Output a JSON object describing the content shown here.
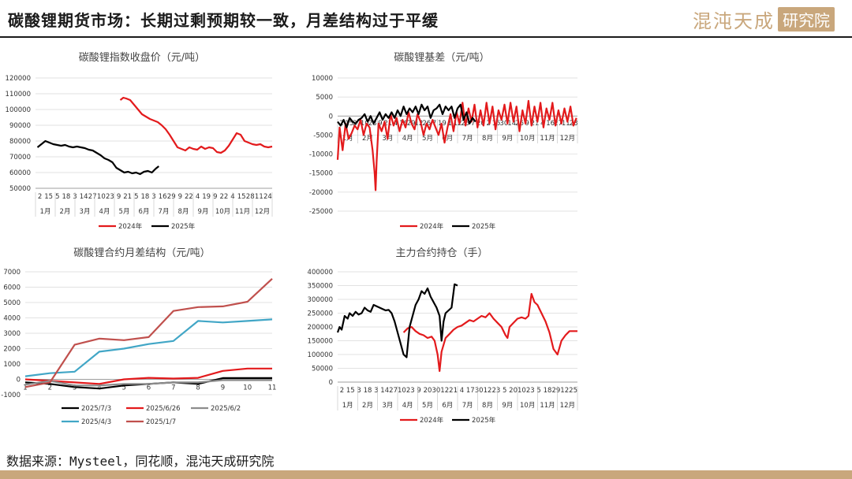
{
  "header": {
    "title": "碳酸锂期货市场：长期过剩预期较一致，月差结构过于平缓",
    "logo_text": "混沌天成",
    "logo_box": "研究院"
  },
  "footer": {
    "source": "数据来源：Mysteel，同花顺，混沌天成研究院"
  },
  "colors": {
    "s2024": "#e31a1c",
    "s2025": "#000000",
    "gold": "#c9a77c"
  },
  "chart_data": [
    {
      "id": "index_close",
      "type": "line",
      "title": "碳酸锂指数收盘价（元/吨）",
      "ylim": [
        50000,
        120000
      ],
      "yticks": [
        50000,
        60000,
        70000,
        80000,
        90000,
        100000,
        110000,
        120000
      ],
      "x_day_labels": [
        "2",
        "15",
        "5",
        "18",
        "3",
        "14",
        "27",
        "10",
        "23",
        "9",
        "21",
        "5",
        "18",
        "3",
        "16",
        "29",
        "9",
        "22",
        "4",
        "19",
        "9",
        "22",
        "4",
        "15",
        "28",
        "11",
        "24"
      ],
      "x_month_labels": [
        "1月",
        "2月",
        "3月",
        "4月",
        "5月",
        "6月",
        "7月",
        "8月",
        "9月",
        "10月",
        "11月",
        "12月"
      ],
      "legend": [
        "2024年",
        "2025年"
      ],
      "series": [
        {
          "name": "2024年",
          "color": "#e31a1c",
          "x": [
            4.3,
            4.45,
            4.6,
            4.8,
            5.0,
            5.2,
            5.4,
            5.6,
            5.8,
            6.0,
            6.2,
            6.4,
            6.6,
            6.8,
            7.0,
            7.2,
            7.4,
            7.6,
            7.8,
            8.0,
            8.2,
            8.4,
            8.6,
            8.8,
            9.0,
            9.2,
            9.4,
            9.6,
            9.8,
            10.0,
            10.2,
            10.4,
            10.6,
            10.8,
            11.0,
            11.2,
            11.4,
            11.6,
            11.8,
            12.0
          ],
          "values": [
            106000,
            107500,
            107000,
            106000,
            103000,
            100000,
            97000,
            95500,
            94000,
            93000,
            92000,
            90000,
            87500,
            84000,
            80000,
            76000,
            75000,
            74000,
            76000,
            75000,
            74500,
            76500,
            75000,
            76000,
            75500,
            73000,
            72500,
            74000,
            77000,
            81000,
            85000,
            84000,
            80000,
            79000,
            78000,
            77500,
            78000,
            76500,
            76000,
            76500
          ]
        },
        {
          "name": "2025年",
          "color": "#000000",
          "x": [
            0.1,
            0.3,
            0.5,
            0.7,
            0.9,
            1.1,
            1.3,
            1.5,
            1.7,
            1.9,
            2.1,
            2.3,
            2.5,
            2.7,
            2.9,
            3.1,
            3.3,
            3.5,
            3.7,
            3.9,
            4.1,
            4.3,
            4.5,
            4.7,
            4.9,
            5.1,
            5.3,
            5.5,
            5.7,
            5.9,
            6.1,
            6.25
          ],
          "values": [
            76000,
            78000,
            80000,
            79000,
            78000,
            77500,
            77000,
            77500,
            76500,
            76000,
            76500,
            76000,
            75500,
            74500,
            74000,
            72500,
            71000,
            69000,
            68000,
            66500,
            63000,
            61500,
            60000,
            60500,
            59500,
            60000,
            59000,
            60500,
            61000,
            60000,
            62500,
            64000
          ]
        }
      ]
    },
    {
      "id": "basis",
      "type": "line",
      "title": "碳酸锂基差（元/吨）",
      "ylim": [
        -25000,
        10000
      ],
      "yticks": [
        -25000,
        -20000,
        -15000,
        -10000,
        -5000,
        0,
        5000,
        10000
      ],
      "x_day_labels": [
        "2",
        "15",
        "27",
        "10",
        "23",
        "9",
        "21",
        "4",
        "16",
        "29",
        "12",
        "26",
        "7",
        "19",
        "1",
        "12",
        "25",
        "7",
        "20",
        "2",
        "15",
        "30",
        "14",
        "26",
        "9",
        "21",
        "4",
        "16",
        "27",
        "11",
        "23"
      ],
      "x_month_labels": [
        "1月",
        "2月",
        "3月",
        "4月",
        "5月",
        "6月",
        "7月",
        "8月",
        "9月",
        "10月",
        "11月",
        "12月"
      ],
      "legend": [
        "2024年",
        "2025年"
      ],
      "series": [
        {
          "name": "2024年",
          "color": "#e31a1c",
          "x": [
            0.0,
            0.1,
            0.25,
            0.4,
            0.55,
            0.7,
            0.85,
            1.0,
            1.15,
            1.3,
            1.45,
            1.6,
            1.75,
            1.85,
            1.9,
            1.95,
            2.05,
            2.2,
            2.35,
            2.5,
            2.65,
            2.8,
            2.95,
            3.1,
            3.25,
            3.4,
            3.55,
            3.7,
            3.85,
            4.0,
            4.15,
            4.3,
            4.45,
            4.6,
            4.75,
            4.9,
            5.05,
            5.2,
            5.35,
            5.5,
            5.65,
            5.8,
            5.95,
            6.1,
            6.25,
            6.4,
            6.55,
            6.7,
            6.85,
            7.0,
            7.15,
            7.3,
            7.45,
            7.6,
            7.75,
            7.9,
            8.05,
            8.2,
            8.35,
            8.5,
            8.65,
            8.8,
            8.95,
            9.1,
            9.25,
            9.4,
            9.55,
            9.7,
            9.85,
            10.0,
            10.15,
            10.3,
            10.45,
            10.6,
            10.75,
            10.9,
            11.05,
            11.2,
            11.35,
            11.5,
            11.65,
            11.8,
            11.95
          ],
          "values": [
            -11500,
            -3000,
            -9000,
            -2000,
            -6000,
            -4500,
            -2500,
            -3500,
            -1000,
            -5000,
            -2000,
            -3000,
            -9000,
            -15000,
            -19500,
            -12000,
            -2000,
            -4000,
            -1500,
            -6000,
            500,
            -2500,
            -500,
            -4000,
            -1000,
            -3000,
            1000,
            -2000,
            -3500,
            500,
            -1500,
            -5000,
            -2000,
            -3500,
            -1000,
            -3000,
            -5000,
            -2000,
            -7000,
            -3000,
            500,
            -4000,
            1000,
            -2000,
            3500,
            -2500,
            2000,
            -1500,
            3000,
            -3000,
            1500,
            -2500,
            3500,
            -2000,
            2500,
            -3500,
            1500,
            -1000,
            3000,
            -2000,
            3500,
            -1500,
            2500,
            -4000,
            1500,
            -2000,
            4000,
            -2500,
            2500,
            -1500,
            3500,
            -3000,
            2000,
            -1000,
            3500,
            -2500,
            1500,
            -2000,
            2000,
            -1500,
            2500,
            -2500,
            -500
          ]
        },
        {
          "name": "2025年",
          "color": "#000000",
          "x": [
            0.0,
            0.15,
            0.3,
            0.45,
            0.6,
            0.75,
            0.9,
            1.05,
            1.2,
            1.35,
            1.5,
            1.65,
            1.8,
            1.95,
            2.1,
            2.25,
            2.4,
            2.55,
            2.7,
            2.85,
            3.0,
            3.15,
            3.3,
            3.45,
            3.6,
            3.75,
            3.9,
            4.05,
            4.2,
            4.35,
            4.5,
            4.65,
            4.8,
            4.95,
            5.1,
            5.25,
            5.4,
            5.55,
            5.7,
            5.85,
            6.0,
            6.15,
            6.3,
            6.45,
            6.6,
            6.75,
            6.9
          ],
          "values": [
            -1500,
            -2500,
            -1000,
            -3000,
            -500,
            -1500,
            -2000,
            -1000,
            -500,
            500,
            -1500,
            0,
            -2000,
            -500,
            1000,
            -1000,
            500,
            -500,
            1000,
            -500,
            1500,
            0,
            2500,
            500,
            2000,
            1000,
            2500,
            500,
            3000,
            1500,
            2500,
            -500,
            1500,
            2000,
            3000,
            500,
            2500,
            1500,
            2500,
            -500,
            2000,
            3000,
            -1000,
            1000,
            -2000,
            -500,
            -1500
          ]
        }
      ]
    },
    {
      "id": "spread_structure",
      "type": "line",
      "title": "碳酸锂合约月差结构（元/吨）",
      "categories": [
        1,
        2,
        3,
        4,
        5,
        6,
        7,
        8,
        9,
        10,
        11
      ],
      "ylim": [
        -1000,
        7000
      ],
      "yticks": [
        -1000,
        0,
        1000,
        2000,
        3000,
        4000,
        5000,
        6000,
        7000
      ],
      "series": [
        {
          "name": "2025/7/3",
          "color": "#000000",
          "values": [
            -200,
            -300,
            -500,
            -600,
            -400,
            -300,
            -200,
            -300,
            80,
            80,
            80
          ]
        },
        {
          "name": "2025/6/26",
          "color": "#e31a1c",
          "values": [
            0,
            -100,
            -200,
            -300,
            0,
            100,
            50,
            100,
            550,
            700,
            700
          ]
        },
        {
          "name": "2025/6/2",
          "color": "#8c8c8c",
          "values": [
            -350,
            -100,
            -400,
            -400,
            -300,
            -300,
            -200,
            -200,
            -50,
            -50,
            -50
          ]
        },
        {
          "name": "2025/4/3",
          "color": "#41a6c6",
          "values": [
            200,
            400,
            500,
            1800,
            2000,
            2300,
            2500,
            3800,
            3700,
            3800,
            3900
          ]
        },
        {
          "name": "2025/1/7",
          "color": "#c0504d",
          "values": [
            -500,
            -200,
            2250,
            2650,
            2550,
            2750,
            4450,
            4700,
            4750,
            5050,
            6550
          ]
        }
      ]
    },
    {
      "id": "open_interest",
      "type": "line",
      "title": "主力合约持仓（手）",
      "ylim": [
        0,
        400000
      ],
      "yticks": [
        0,
        50000,
        100000,
        150000,
        200000,
        250000,
        300000,
        350000,
        400000
      ],
      "x_day_labels": [
        "2",
        "15",
        "3",
        "18",
        "3",
        "14",
        "27",
        "10",
        "23",
        "9",
        "20",
        "30",
        "12",
        "21",
        "4",
        "17",
        "30",
        "12",
        "23",
        "5",
        "20",
        "10",
        "23",
        "5",
        "18",
        "29",
        "12",
        "25"
      ],
      "x_month_labels": [
        "1月",
        "2月",
        "3月",
        "4月",
        "5月",
        "6月",
        "7月",
        "8月",
        "9月",
        "10月",
        "11月",
        "12月"
      ],
      "legend": [
        "2024年",
        "2025年"
      ],
      "series": [
        {
          "name": "2024年",
          "color": "#e31a1c",
          "x": [
            3.3,
            3.5,
            3.7,
            3.9,
            4.1,
            4.3,
            4.5,
            4.7,
            4.85,
            5.0,
            5.1,
            5.2,
            5.4,
            5.6,
            5.8,
            6.0,
            6.2,
            6.4,
            6.6,
            6.8,
            7.0,
            7.2,
            7.4,
            7.6,
            7.8,
            8.0,
            8.2,
            8.4,
            8.5,
            8.6,
            8.8,
            9.0,
            9.2,
            9.4,
            9.55,
            9.7,
            9.85,
            10.0,
            10.2,
            10.4,
            10.6,
            10.8,
            11.0,
            11.2,
            11.4,
            11.6,
            11.8,
            12.0
          ],
          "values": [
            180000,
            195000,
            200000,
            185000,
            175000,
            170000,
            160000,
            165000,
            150000,
            100000,
            40000,
            110000,
            160000,
            175000,
            190000,
            200000,
            205000,
            215000,
            225000,
            220000,
            230000,
            240000,
            235000,
            250000,
            230000,
            215000,
            200000,
            170000,
            160000,
            200000,
            215000,
            230000,
            235000,
            230000,
            240000,
            320000,
            290000,
            280000,
            250000,
            220000,
            180000,
            120000,
            100000,
            150000,
            170000,
            185000,
            185000,
            185000
          ]
        },
        {
          "name": "2025年",
          "color": "#000000",
          "x": [
            0.0,
            0.1,
            0.2,
            0.35,
            0.5,
            0.6,
            0.75,
            0.9,
            1.05,
            1.2,
            1.35,
            1.5,
            1.65,
            1.8,
            1.95,
            2.1,
            2.25,
            2.4,
            2.55,
            2.7,
            2.85,
            3.0,
            3.15,
            3.3,
            3.45,
            3.6,
            3.75,
            3.9,
            4.05,
            4.2,
            4.35,
            4.5,
            4.65,
            4.8,
            4.95,
            5.1,
            5.2,
            5.3,
            5.4,
            5.55,
            5.7,
            5.85,
            6.0
          ],
          "values": [
            180000,
            200000,
            190000,
            240000,
            230000,
            250000,
            240000,
            255000,
            245000,
            250000,
            270000,
            260000,
            255000,
            280000,
            275000,
            270000,
            265000,
            260000,
            262000,
            250000,
            220000,
            180000,
            140000,
            100000,
            90000,
            200000,
            240000,
            280000,
            300000,
            330000,
            320000,
            340000,
            310000,
            290000,
            270000,
            240000,
            150000,
            220000,
            250000,
            260000,
            270000,
            355000,
            350000
          ]
        }
      ]
    }
  ]
}
